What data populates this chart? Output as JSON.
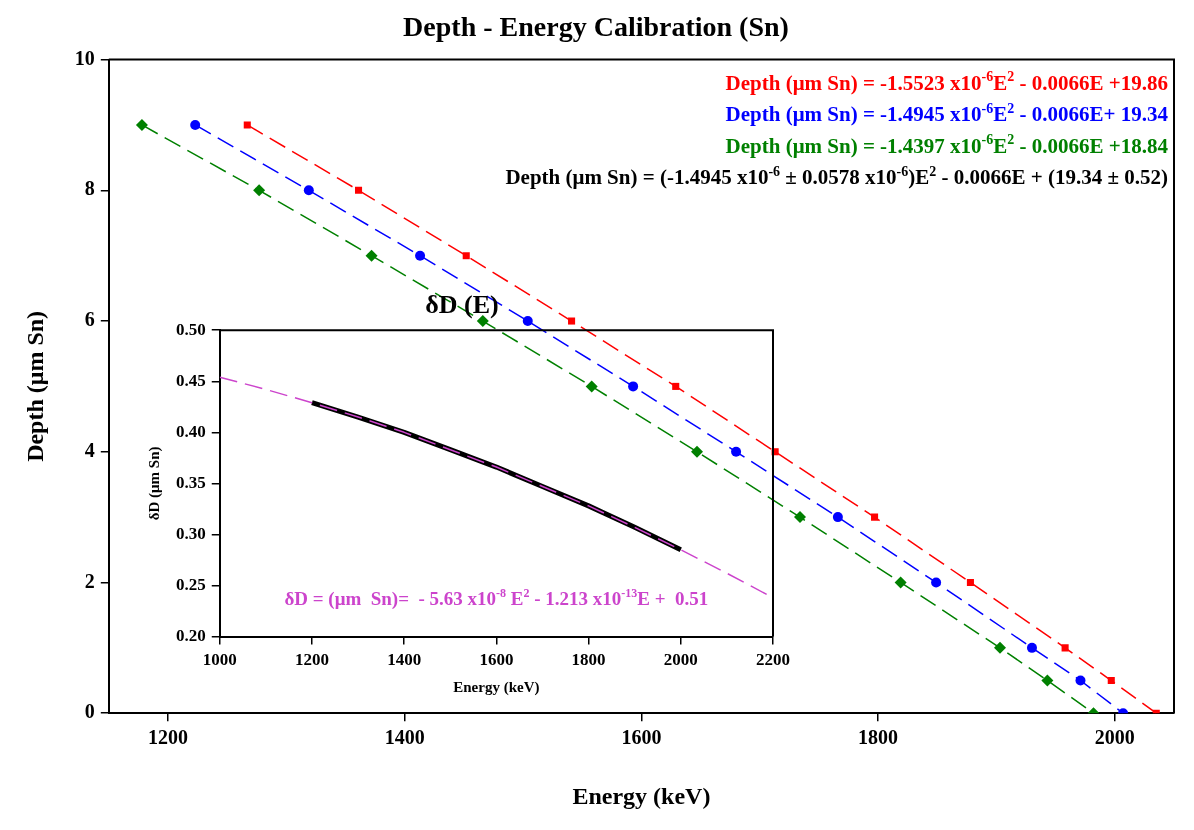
{
  "chart_data": [
    {
      "type": "line",
      "title": "Depth - Energy Calibration (Sn)",
      "xlabel": "Energy (keV)",
      "ylabel": "Depth (μm Sn)",
      "xlim": [
        1150,
        2050
      ],
      "xticks": [
        1200,
        1400,
        1600,
        1800,
        2000
      ],
      "ylim": [
        0,
        10
      ],
      "yticks": [
        0,
        2,
        4,
        6,
        8,
        10
      ],
      "grid": false,
      "legend": false,
      "line_style": "dashed",
      "series": [
        {
          "color": "#ff0000",
          "marker": "square",
          "x": [
            1267,
            1361,
            1452,
            1541,
            1629,
            1713,
            1797,
            1878,
            1958,
            1997,
            2035
          ],
          "values": [
            9,
            8,
            7,
            6,
            5,
            4,
            3,
            2,
            1,
            0.5,
            0
          ]
        },
        {
          "color": "#0000ff",
          "marker": "circle",
          "x": [
            1223,
            1319,
            1413,
            1504,
            1593,
            1680,
            1766,
            1849,
            1930,
            1971,
            2007
          ],
          "values": [
            9,
            8,
            7,
            6,
            5,
            4,
            3,
            2,
            1,
            0.5,
            0
          ]
        },
        {
          "color": "#008000",
          "marker": "diamond",
          "x": [
            1178,
            1277,
            1372,
            1466,
            1558,
            1647,
            1734,
            1819,
            1903,
            1943,
            1982
          ],
          "values": [
            9,
            8,
            7,
            6,
            5,
            4,
            3,
            2,
            1,
            0.5,
            0
          ]
        }
      ],
      "annotations": [
        "Depth (μm Sn) = -1.5523 x10$^{-6}$E$^{2}$ - 0.0066E +19.86",
        "Depth (μm Sn) = -1.4945 x10$^{-6}$E$^{2}$ - 0.0066E+ 19.34",
        "Depth (μm Sn) = -1.4397 x10$^{-6}$E$^{2}$ - 0.0066E +18.84",
        "Depth (μm Sn) = (-1.4945 x10$^{-6}$ ± 0.0578 x10$^{-6}$)E$^{2}$ - 0.0066E + (19.34 ± 0.52)"
      ]
    },
    {
      "type": "line",
      "title": "δD (E)",
      "xlabel": "Energy (keV)",
      "ylabel": "δD (μm Sn)",
      "xlim": [
        1000,
        2200
      ],
      "xticks": [
        1000,
        1200,
        1400,
        1600,
        1800,
        2000,
        2200
      ],
      "ylim": [
        0.2,
        0.5
      ],
      "yticks": [
        {
          "value": 0.2,
          "label": "0.20"
        },
        0.25,
        {
          "value": 0.3,
          "label": "0.30"
        },
        0.35,
        {
          "value": 0.4,
          "label": "0.40"
        },
        0.45,
        {
          "value": 0.5,
          "label": "0.50"
        }
      ],
      "grid": false,
      "legend": false,
      "series": [
        {
          "color": "#cc44cc",
          "marker": "none",
          "line_style": "dashed",
          "x": [
            1000,
            1100,
            1200,
            1300,
            1400,
            1500,
            1600,
            1700,
            1800,
            1900,
            2000,
            2100,
            2200
          ],
          "values": [
            0.454,
            0.442,
            0.429,
            0.415,
            0.4,
            0.383,
            0.366,
            0.347,
            0.328,
            0.307,
            0.285,
            0.262,
            0.238
          ]
        },
        {
          "color": "#000000",
          "marker": "none",
          "line_style": "solid",
          "x": [
            1200,
            1300,
            1400,
            1500,
            1600,
            1700,
            1800,
            1900,
            2000
          ],
          "values": [
            0.429,
            0.415,
            0.4,
            0.383,
            0.366,
            0.347,
            0.328,
            0.307,
            0.285
          ]
        }
      ],
      "annotations": [
        "δD = (μm  Sn)=  - 5.63 x10$^{-8}$ E$^{2}$ - 1.213 x10$^{-13}$E +  0.51"
      ]
    }
  ]
}
